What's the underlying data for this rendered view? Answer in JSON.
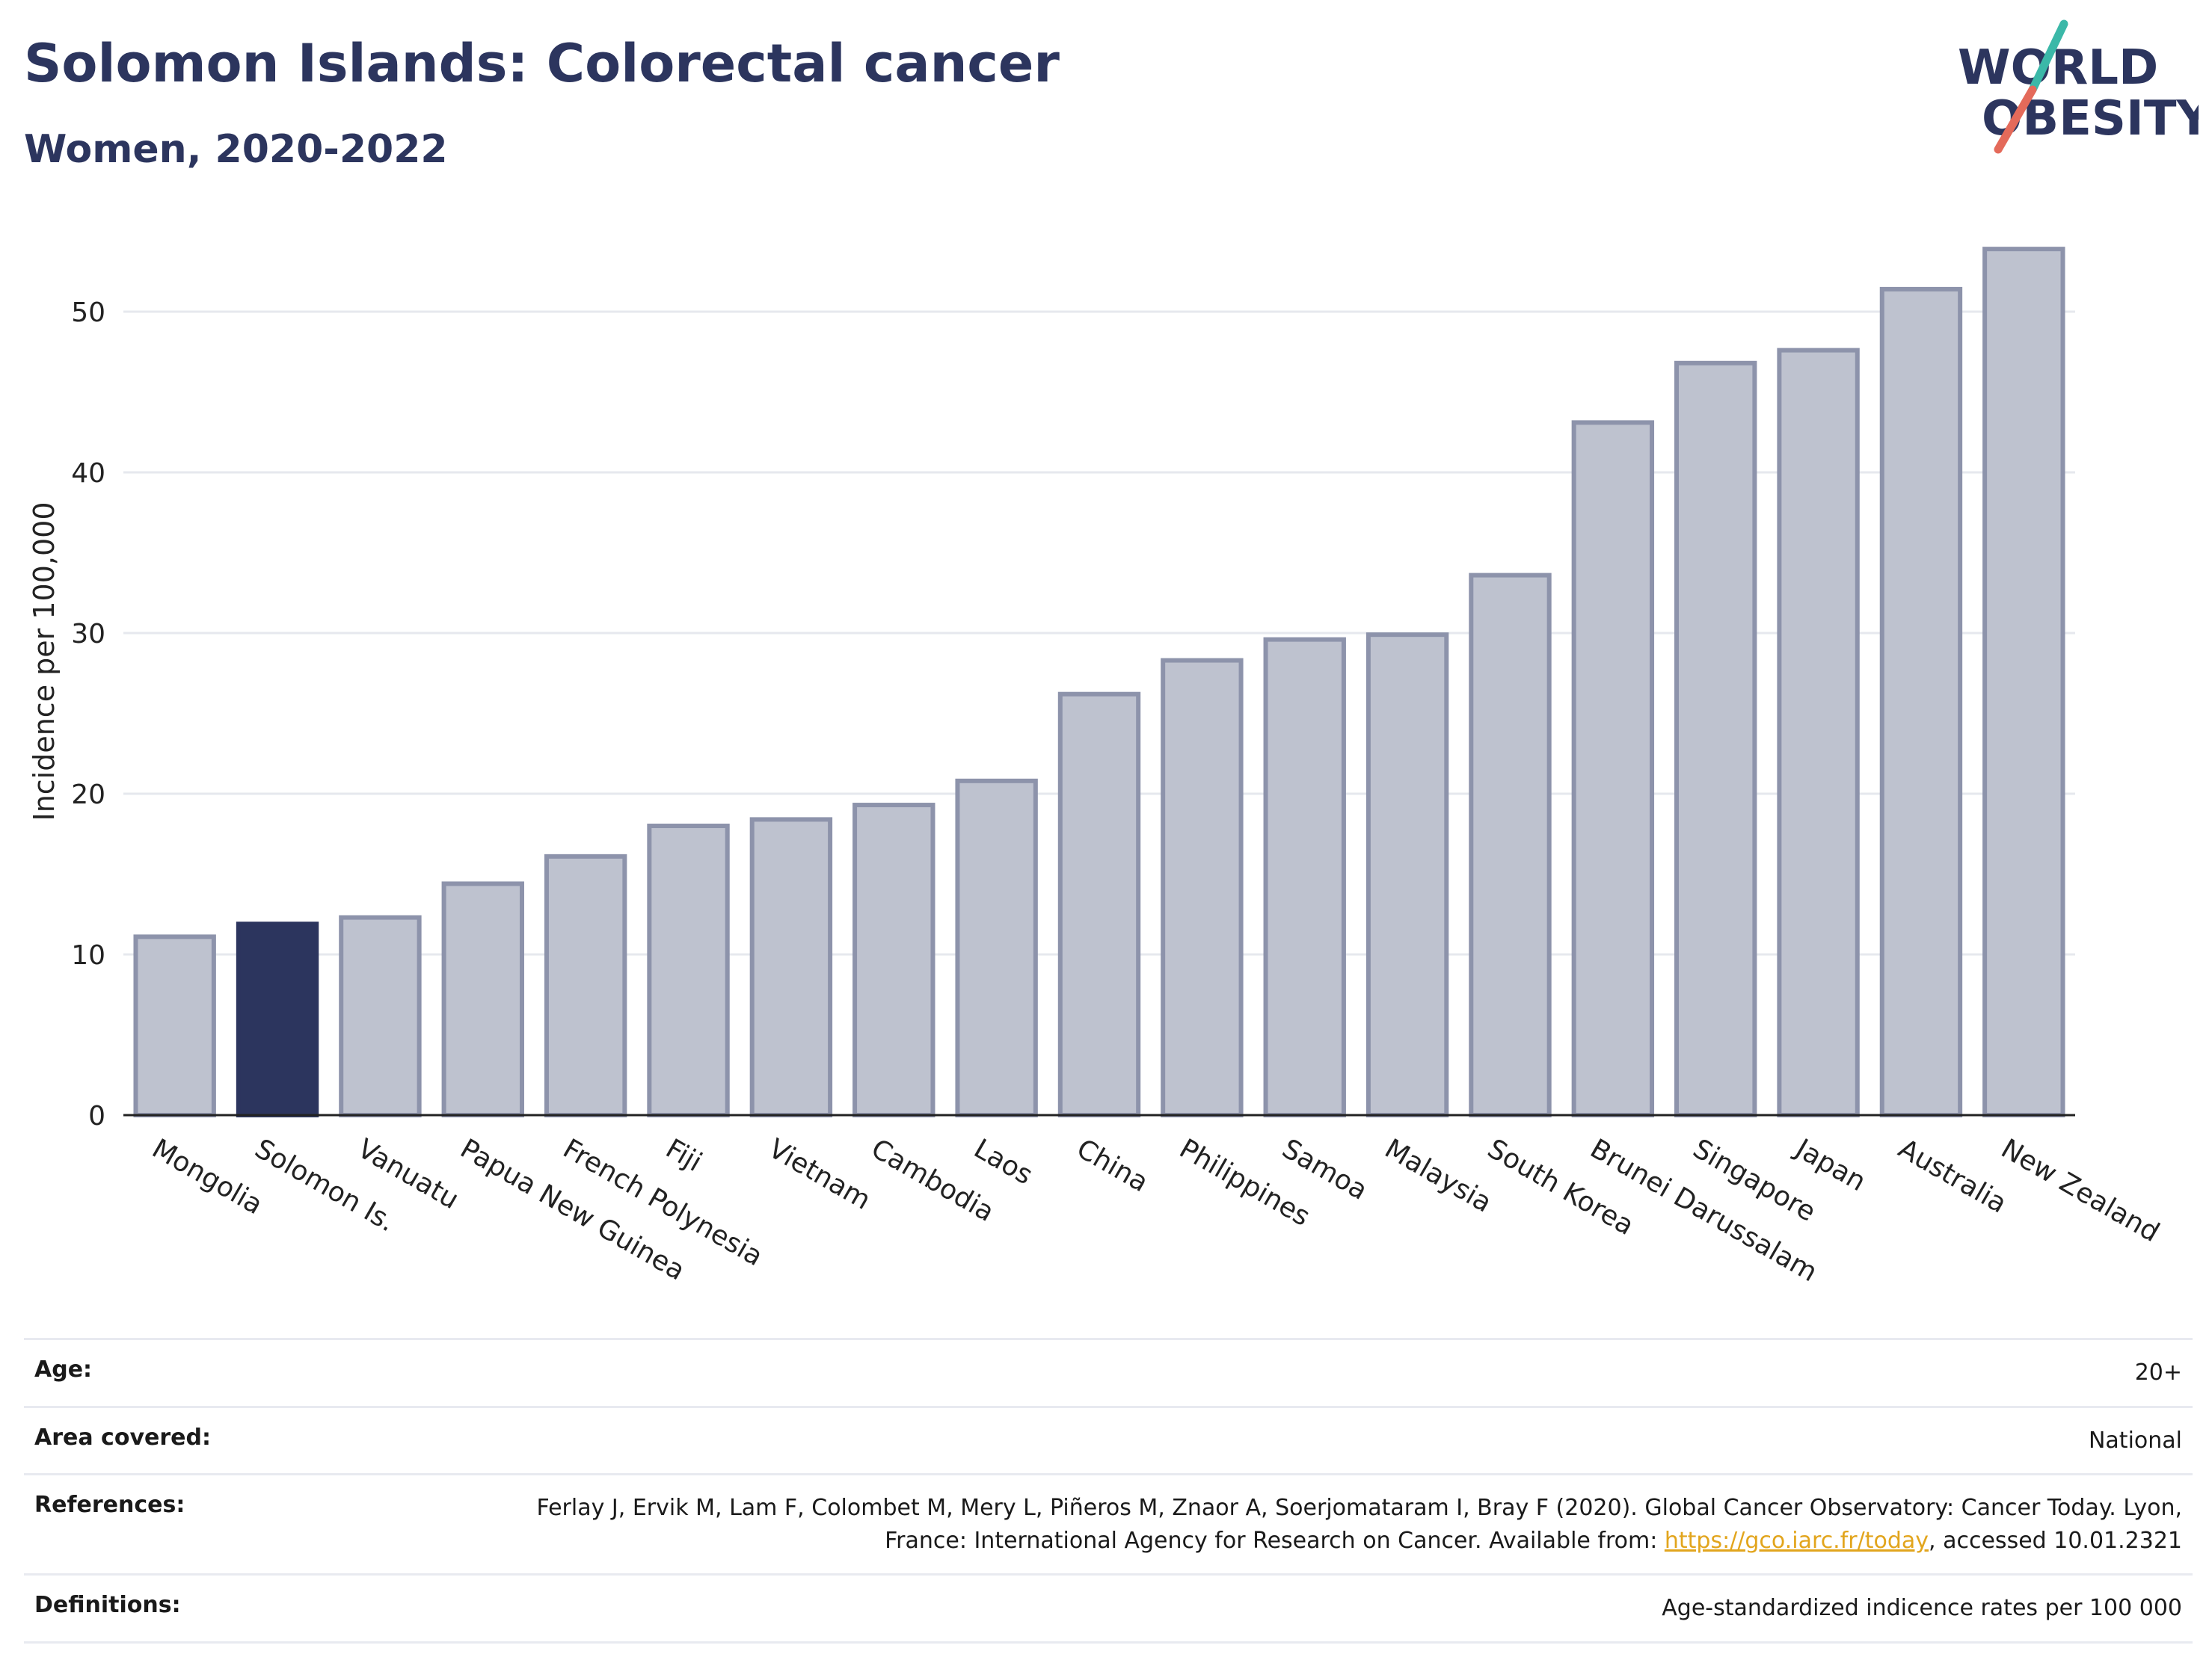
{
  "header": {
    "title": "Solomon Islands: Colorectal cancer",
    "subtitle": "Women, 2020-2022"
  },
  "logo": {
    "line1": "WORLD",
    "line2": "OBESITY",
    "colors": {
      "text": "#2c355e",
      "slash_red": "#e46a5a",
      "slash_teal": "#3bb8a8"
    }
  },
  "colors": {
    "highlight": "#2c355e",
    "bar": "#bec2cf",
    "bar_stroke": "#8d93ab",
    "axis": "#222222",
    "grid": "#e6e8ee"
  },
  "chart_data": {
    "type": "bar",
    "ylabel": "Incidence per 100,000",
    "ylim": [
      0,
      56
    ],
    "yticks": [
      0,
      10,
      20,
      30,
      40,
      50
    ],
    "grid": true,
    "highlight": "Solomon Is.",
    "categories": [
      "Mongolia",
      "Solomon Is.",
      "Vanuatu",
      "Papua New Guinea",
      "French Polynesia",
      "Fiji",
      "Vietnam",
      "Cambodia",
      "Laos",
      "China",
      "Philippines",
      "Samoa",
      "Malaysia",
      "South Korea",
      "Brunei Darussalam",
      "Singapore",
      "Japan",
      "Australia",
      "New Zealand"
    ],
    "values": [
      11.1,
      11.9,
      12.3,
      14.4,
      16.1,
      18.0,
      18.4,
      19.3,
      20.8,
      26.2,
      28.3,
      29.6,
      29.9,
      33.6,
      43.1,
      46.8,
      47.6,
      51.4,
      53.9
    ]
  },
  "meta": {
    "age_label": "Age:",
    "age_value": "20+",
    "area_label": "Area covered:",
    "area_value": "National",
    "references_label": "References:",
    "references_text": "Ferlay J, Ervik M, Lam F, Colombet M, Mery L, Piñeros M, Znaor A, Soerjomataram I, Bray F (2020). Global Cancer Observatory: Cancer Today. Lyon, France: International Agency for Research on Cancer. Available from: ",
    "references_link": "https://gco.iarc.fr/today",
    "references_tail": ", accessed 10.01.2321",
    "definitions_label": "Definitions:",
    "definitions_value": "Age-standardized indicence rates per 100 000"
  }
}
